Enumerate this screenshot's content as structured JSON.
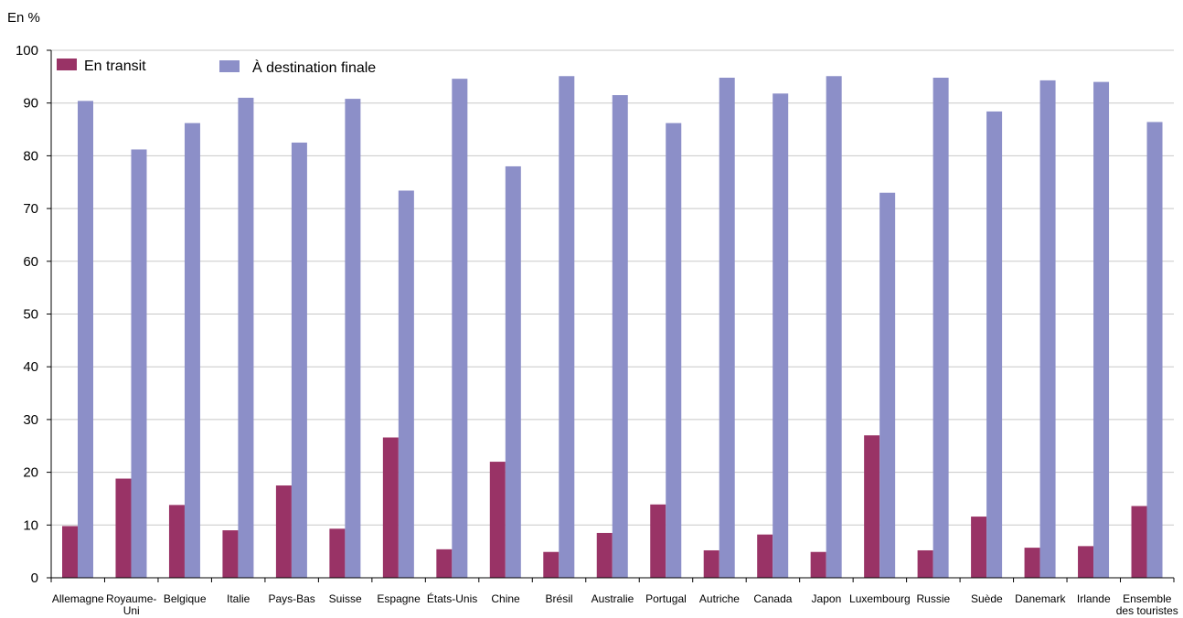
{
  "chart_data": {
    "type": "bar",
    "unit_label": "En %",
    "ylim": [
      0,
      100
    ],
    "yticks": [
      0,
      10,
      20,
      30,
      40,
      50,
      60,
      70,
      80,
      90,
      100
    ],
    "grid": true,
    "legend_position": "top-left",
    "categories": [
      "Allemagne",
      "Royaume-\nUni",
      "Belgique",
      "Italie",
      "Pays-Bas",
      "Suisse",
      "Espagne",
      "États-Unis",
      "Chine",
      "Brésil",
      "Australie",
      "Portugal",
      "Autriche",
      "Canada",
      "Japon",
      "Luxembourg",
      "Russie",
      "Suède",
      "Danemark",
      "Irlande",
      "Ensemble\ndes touristes"
    ],
    "series": [
      {
        "name": "En transit",
        "color": "#993366",
        "values": [
          9.8,
          18.8,
          13.8,
          9.0,
          17.5,
          9.3,
          26.6,
          5.4,
          22.0,
          4.9,
          8.5,
          13.9,
          5.2,
          8.2,
          4.9,
          27.0,
          5.2,
          11.6,
          5.7,
          6.0,
          13.6
        ]
      },
      {
        "name": "À destination finale",
        "color": "#8c8fc8",
        "values": [
          90.4,
          81.2,
          86.2,
          91.0,
          82.5,
          90.8,
          73.4,
          94.6,
          78.0,
          95.1,
          91.5,
          86.2,
          94.8,
          91.8,
          95.1,
          73.0,
          94.8,
          88.4,
          94.3,
          94.0,
          86.4
        ]
      }
    ]
  }
}
